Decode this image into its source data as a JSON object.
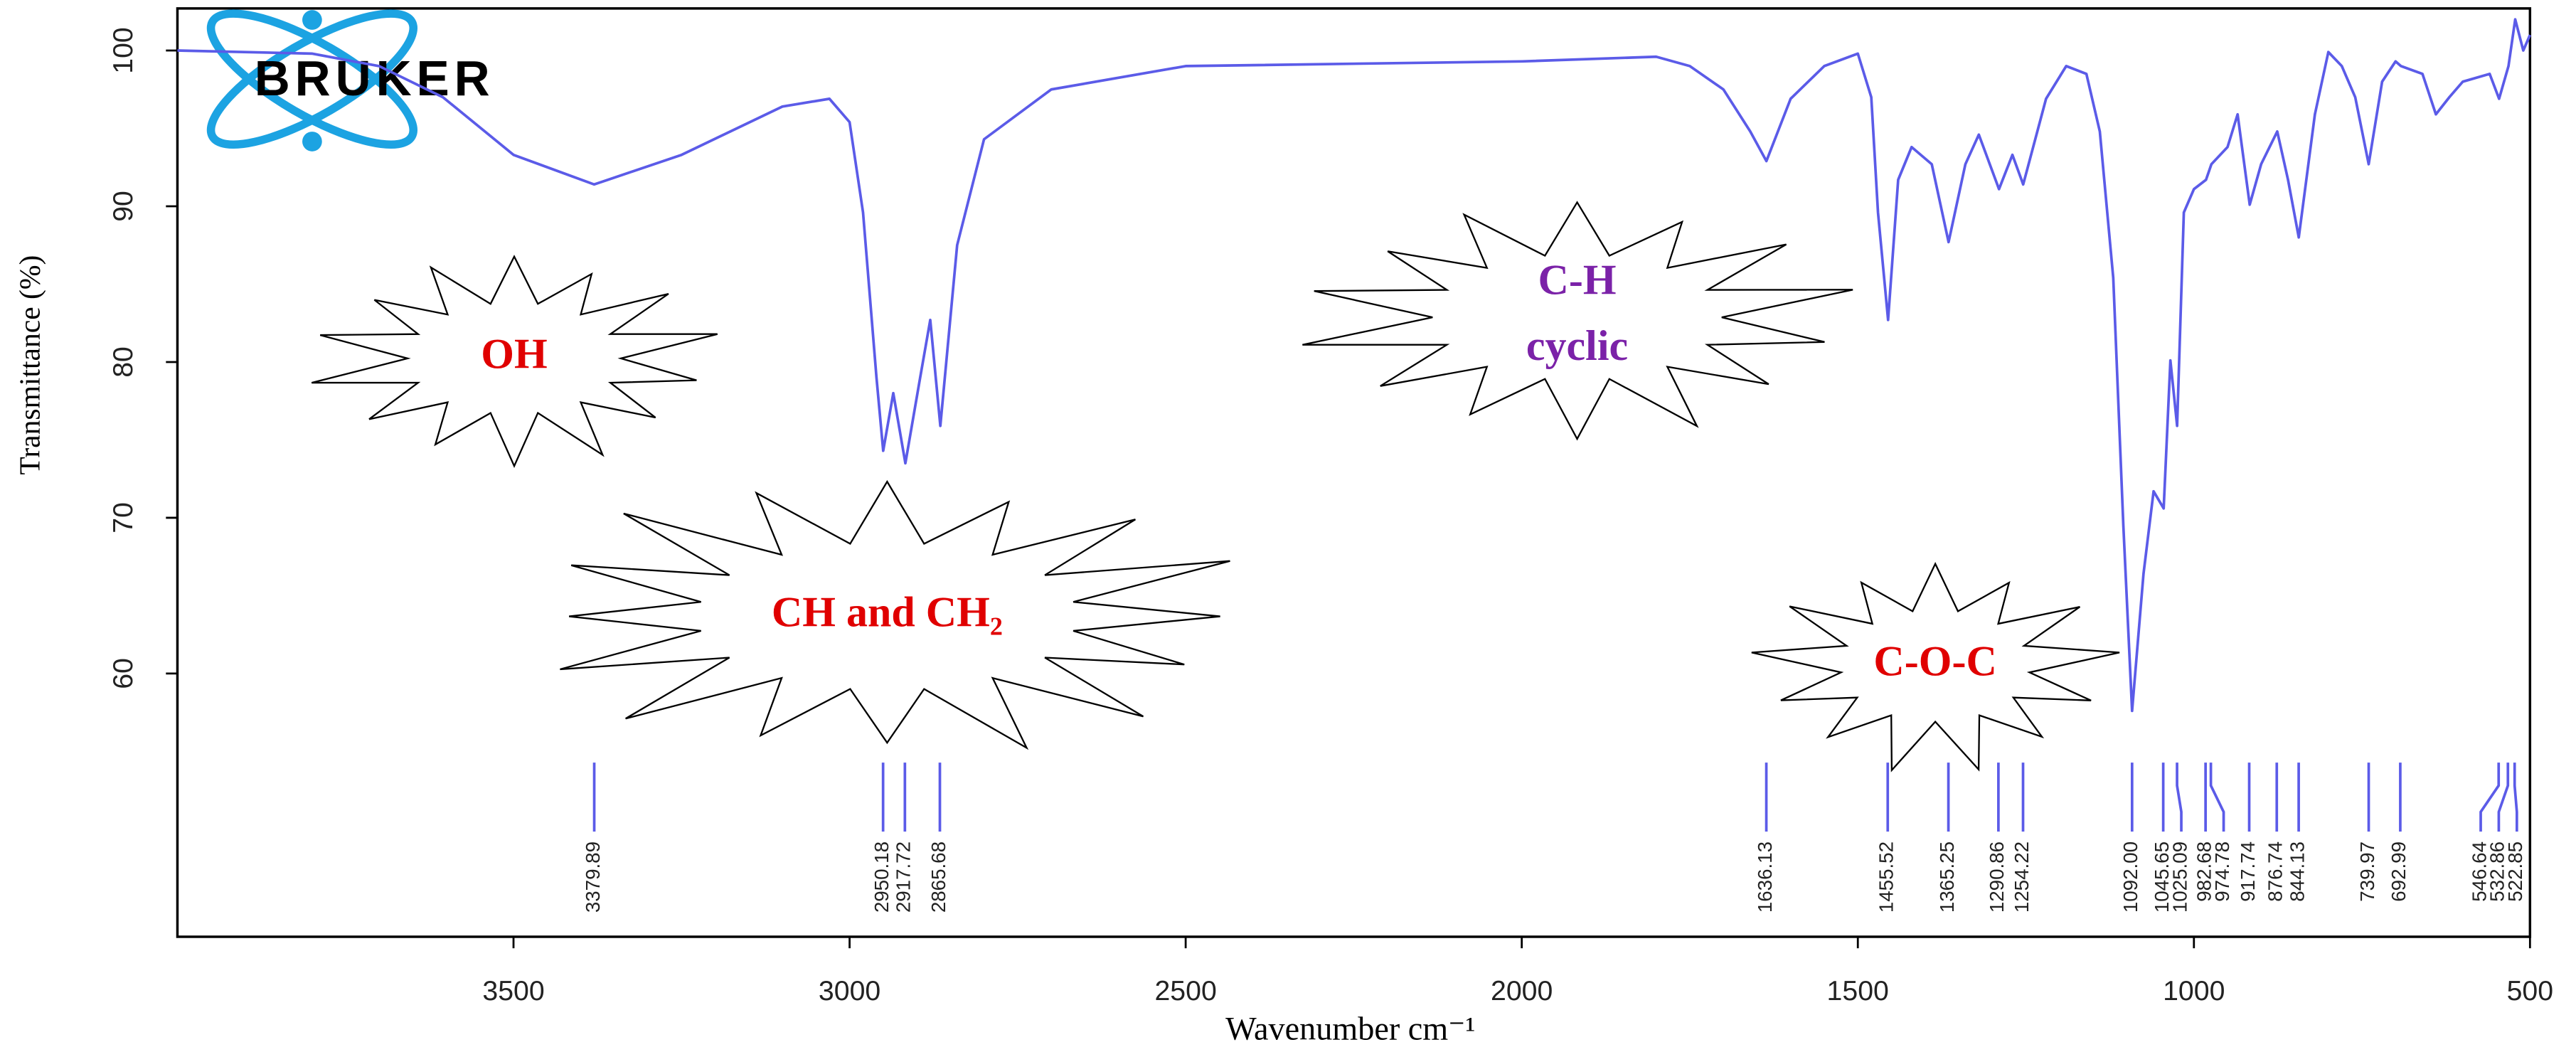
{
  "chart_data": {
    "type": "line",
    "logo": "BRUKER",
    "xlabel": "Wavenumber cm⁻¹",
    "ylabel": "Transmittance (%)",
    "color": "#5b5be8",
    "xlim": [
      4000,
      500
    ],
    "xticks": [
      3500,
      3000,
      2500,
      2000,
      1500,
      1000,
      500
    ],
    "ylim": [
      43.1,
      102.7
    ],
    "yticks": [
      60,
      70,
      80,
      90,
      100
    ],
    "x": [
      4000,
      3800,
      3700,
      3605,
      3500,
      3380,
      3250,
      3100,
      3030,
      3000,
      2980,
      2960,
      2950,
      2935,
      2917,
      2895,
      2880,
      2865,
      2840,
      2800,
      2700,
      2500,
      2000,
      1800,
      1750,
      1700,
      1660,
      1636,
      1600,
      1550,
      1500,
      1480,
      1470,
      1455,
      1440,
      1420,
      1390,
      1365,
      1340,
      1320,
      1290,
      1270,
      1254,
      1220,
      1190,
      1160,
      1140,
      1120,
      1105,
      1092,
      1075,
      1060,
      1045,
      1035,
      1025,
      1015,
      1000,
      982,
      974,
      950,
      935,
      917,
      900,
      876,
      860,
      844,
      820,
      800,
      780,
      760,
      740,
      720,
      700,
      692,
      660,
      640,
      620,
      600,
      560,
      546,
      532,
      522,
      510,
      500
    ],
    "values": [
      100,
      99.8,
      99,
      97,
      93.3,
      91.4,
      93.3,
      96.4,
      96.9,
      95.4,
      89.6,
      79,
      74.3,
      78,
      73.5,
      79,
      82.7,
      75.9,
      87.5,
      94.3,
      97.5,
      99,
      99.3,
      99.6,
      99,
      97.5,
      94.8,
      92.9,
      96.9,
      99,
      99.8,
      97,
      89.6,
      82.7,
      91.7,
      93.8,
      92.7,
      87.7,
      92.7,
      94.6,
      91.1,
      93.3,
      91.4,
      96.9,
      99,
      98.5,
      94.8,
      85.4,
      69.5,
      57.6,
      66.4,
      71.7,
      70.6,
      80.1,
      75.9,
      89.6,
      91.1,
      91.7,
      92.7,
      93.8,
      95.9,
      90.1,
      92.7,
      94.8,
      91.7,
      88,
      95.9,
      99.9,
      99,
      97,
      92.7,
      98,
      99.3,
      99,
      98.5,
      95.9,
      97,
      98,
      98.5,
      96.9,
      99,
      102,
      100,
      101
    ],
    "peaks": [
      3379.89,
      2950.18,
      2917.72,
      2865.68,
      1636.13,
      1455.52,
      1365.25,
      1290.86,
      1254.22,
      {
        "value": 1092,
        "label": "1092.00"
      },
      1045.65,
      1025.09,
      982.68,
      974.78,
      917.74,
      876.74,
      844.13,
      739.97,
      692.99,
      546.64,
      532.86,
      522.85
    ],
    "annotations": [
      {
        "lines": [
          "OH"
        ],
        "color": "#e00000"
      },
      {
        "lines": [
          "CH and CH₂"
        ],
        "color": "#e00000"
      },
      {
        "lines": [
          "C-H",
          "cyclic"
        ],
        "color": "#7b22a8"
      },
      {
        "lines": [
          "C-O-C"
        ],
        "color": "#e00000"
      }
    ]
  }
}
